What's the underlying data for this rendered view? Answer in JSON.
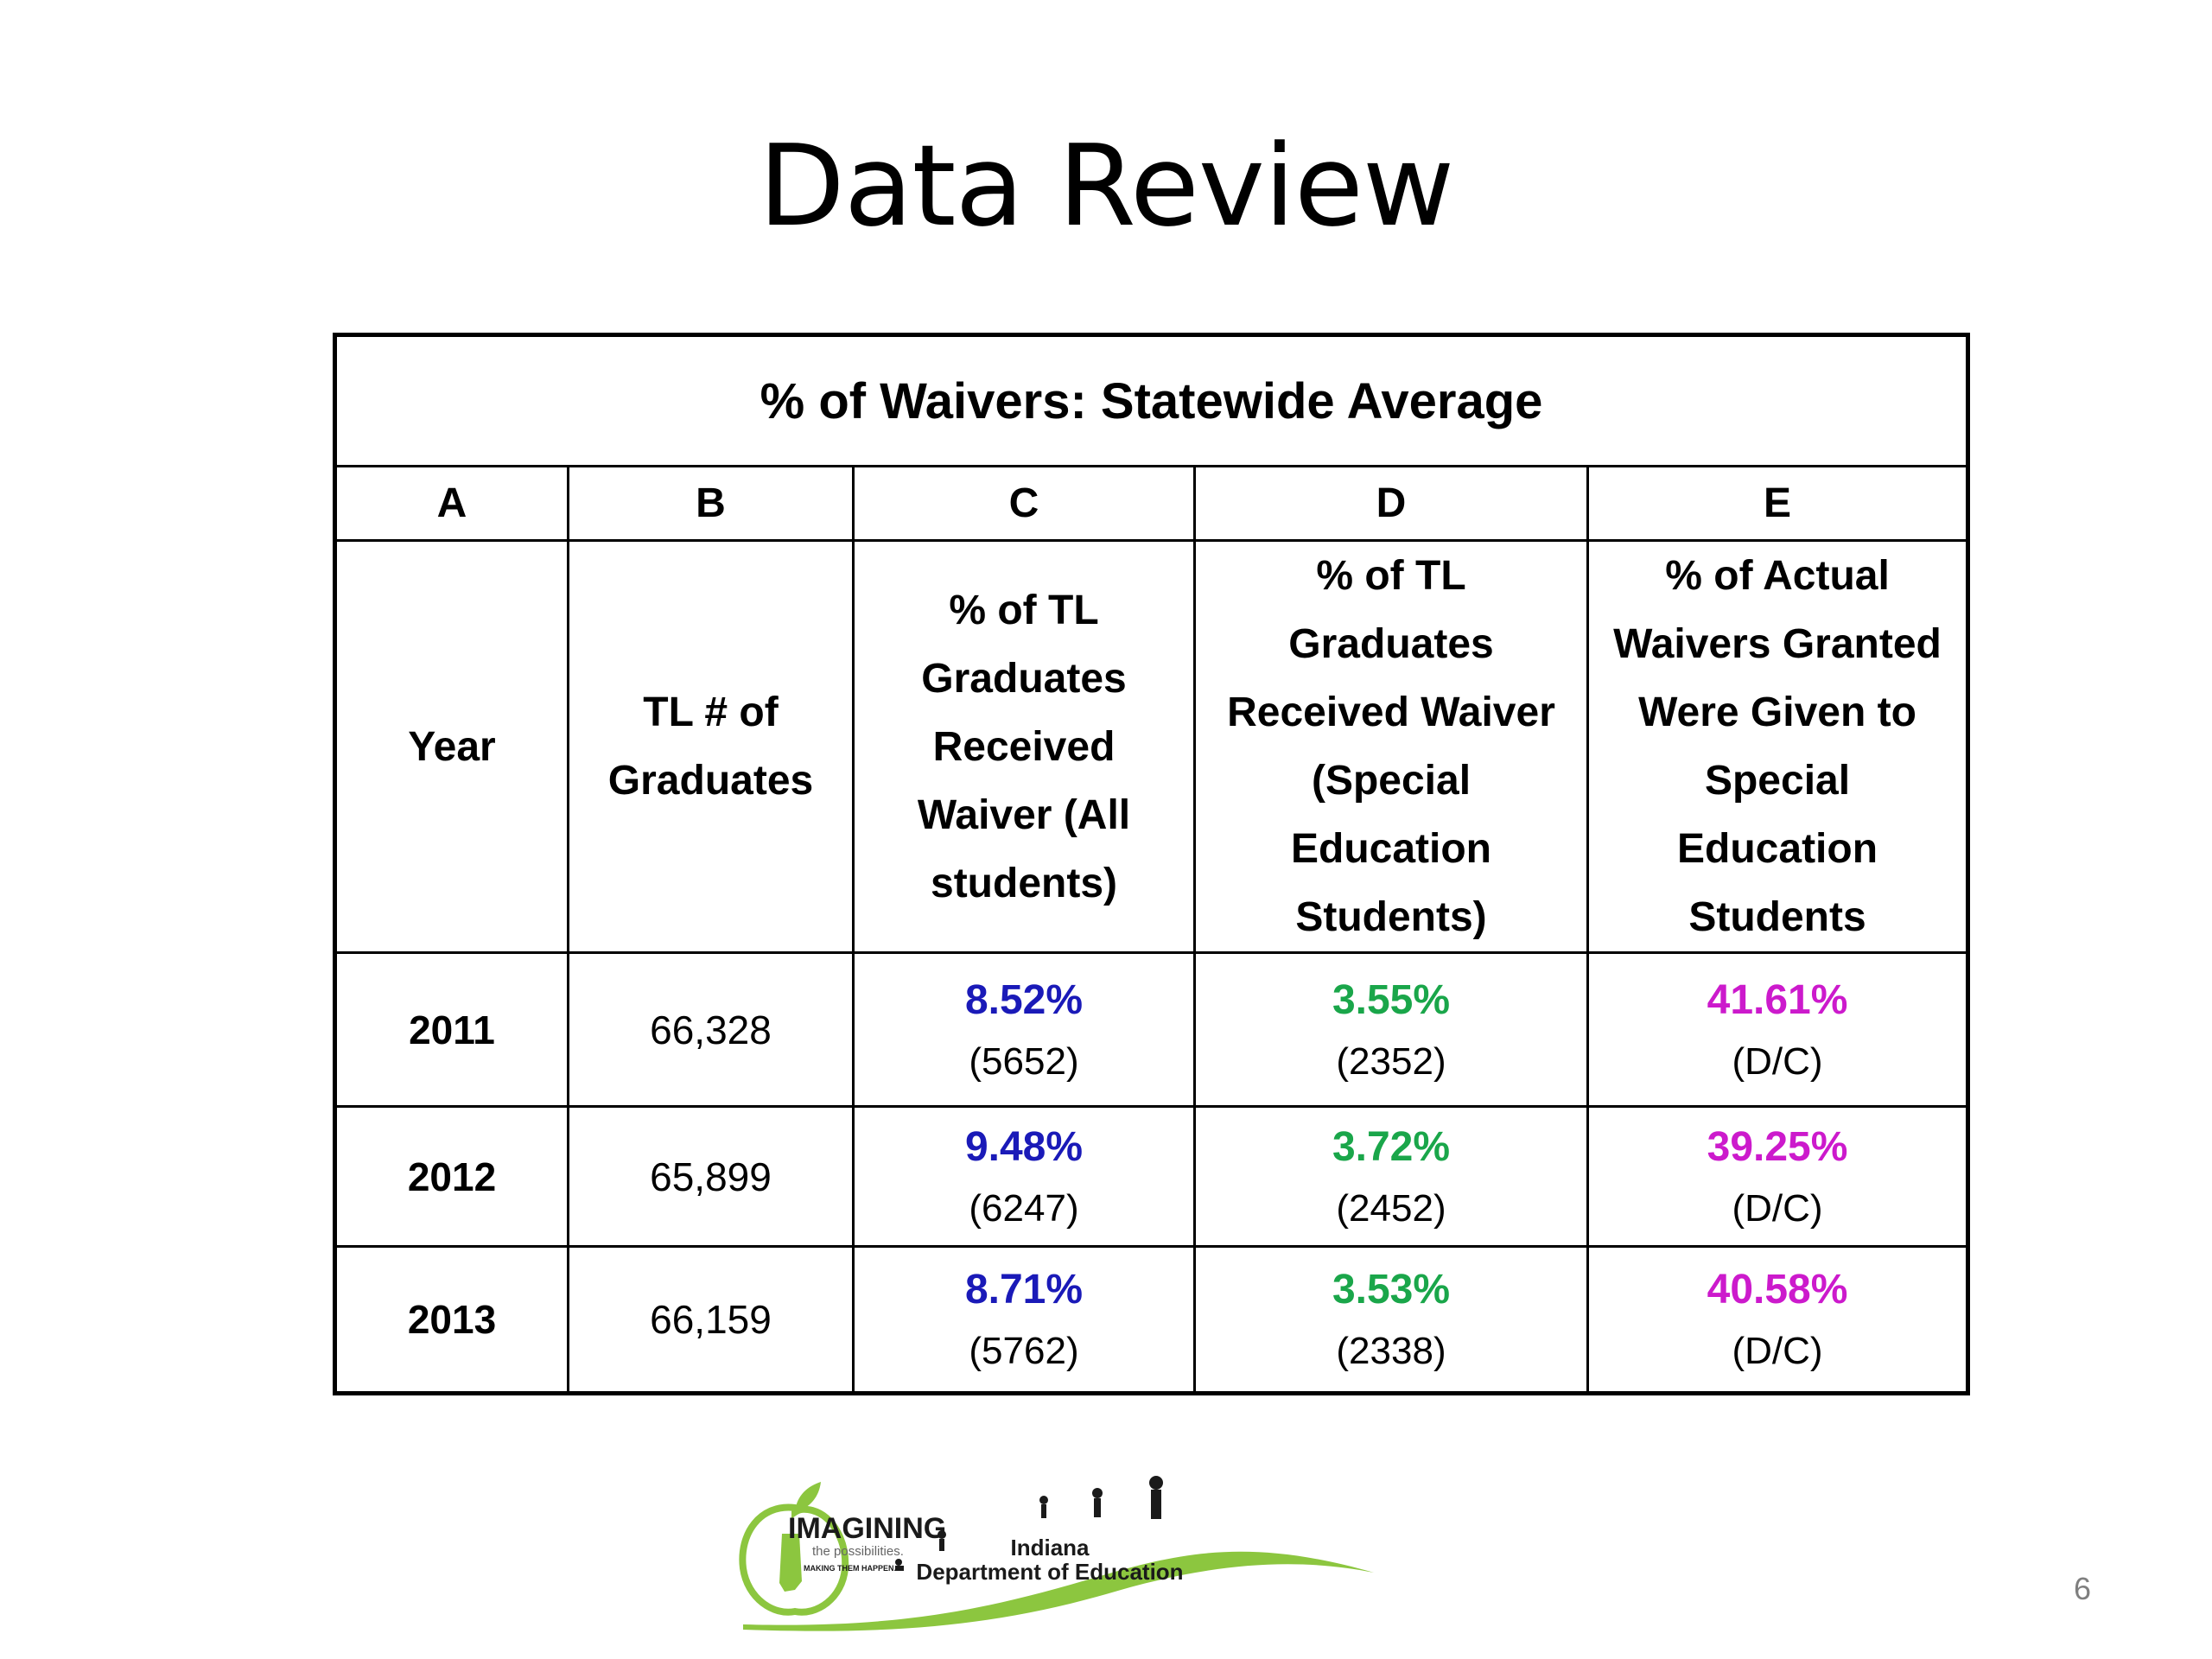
{
  "slide": {
    "title": "Data Review",
    "page_number": "6"
  },
  "colors": {
    "col_c": "#1a1ab8",
    "col_d": "#1aa64a",
    "col_e": "#cc1acc",
    "logo_green": "#8cc63f"
  },
  "table": {
    "caption": "% of Waivers: Statewide Average",
    "letters": [
      "A",
      "B",
      "C",
      "D",
      "E"
    ],
    "headers": [
      [
        "Year"
      ],
      [
        "TL # of",
        "Graduates"
      ],
      [
        "% of TL",
        "Graduates",
        "Received",
        "Waiver (All",
        "students)"
      ],
      [
        "% of TL",
        "Graduates",
        "Received Waiver",
        "(Special",
        "Education",
        "Students)"
      ],
      [
        "% of Actual",
        "Waivers Granted",
        "Were Given to",
        "Special",
        "Education",
        "Students"
      ]
    ],
    "rows": [
      {
        "year": "2011",
        "graduates": "66,328",
        "c_pct": "8.52%",
        "c_count": "(5652)",
        "d_pct": "3.55%",
        "d_count": "(2352)",
        "e_pct": "41.61%",
        "e_note": "(D/C)"
      },
      {
        "year": "2012",
        "graduates": "65,899",
        "c_pct": "9.48%",
        "c_count": "(6247)",
        "d_pct": "3.72%",
        "d_count": "(2452)",
        "e_pct": "39.25%",
        "e_note": "(D/C)"
      },
      {
        "year": "2013",
        "graduates": "66,159",
        "c_pct": "8.71%",
        "c_count": "(5762)",
        "d_pct": "3.53%",
        "d_count": "(2338)",
        "e_pct": "40.58%",
        "e_note": "(D/C)"
      }
    ]
  },
  "logo": {
    "brand_line1": "IMAGINING",
    "brand_line2": "the possibilities.",
    "brand_line3": "MAKING THEM HAPPEN.",
    "org_line1": "Indiana",
    "org_line2": "Department of Education"
  }
}
